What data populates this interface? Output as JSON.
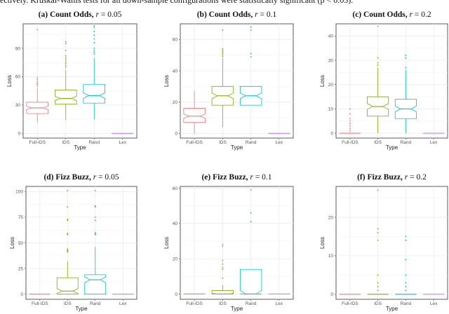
{
  "caption": "ectively. Kruskal-Wallis tests for all down-sample configurations were statistically significant (p < 0.05).",
  "colors": {
    "Full-IDS": "#F8766D",
    "IDS": "#7CAE00",
    "Rand": "#00BFC4",
    "Lex": "#C77CFF"
  },
  "chart_data": [
    {
      "type": "box",
      "title": {
        "label": "(a) Count Odds,",
        "param": "r",
        "value": "= 0.05"
      },
      "xlabel": "Type",
      "ylabel": "Loss",
      "ylim": [
        -5,
        116
      ],
      "yticks": [
        0,
        30,
        60,
        90
      ],
      "categories": [
        "Full-IDS",
        "IDS",
        "Rand",
        "Lex"
      ],
      "boxes": [
        {
          "whisker_lo": 12,
          "q1": 21,
          "median": 27,
          "q3": 33,
          "whisker_hi": 48,
          "outliers": [
            50,
            52,
            53,
            55,
            57,
            59,
            110
          ]
        },
        {
          "whisker_lo": 14,
          "q1": 31,
          "median": 37,
          "q3": 46,
          "whisker_hi": 67,
          "outliers": [
            70,
            72,
            74,
            76,
            78,
            80,
            82,
            88,
            95,
            97
          ]
        },
        {
          "whisker_lo": 15,
          "q1": 32,
          "median": 40,
          "q3": 52,
          "whisker_hi": 80,
          "outliers": [
            84,
            86,
            88,
            90,
            96,
            100,
            104,
            108,
            112,
            114
          ]
        },
        {
          "whisker_lo": 0,
          "q1": 0,
          "median": 0,
          "q3": 0,
          "whisker_hi": 0,
          "outliers": []
        }
      ]
    },
    {
      "type": "box",
      "title": {
        "label": "(b) Count Odds,",
        "param": "r",
        "value": "= 0.1"
      },
      "xlabel": "Type",
      "ylabel": "Loss",
      "ylim": [
        -3,
        70
      ],
      "yticks": [
        0,
        20,
        40,
        60
      ],
      "categories": [
        "Full-IDS",
        "IDS",
        "Rand",
        "Lex"
      ],
      "boxes": [
        {
          "whisker_lo": 0,
          "q1": 7,
          "median": 11,
          "q3": 16,
          "whisker_hi": 27,
          "outliers": []
        },
        {
          "whisker_lo": 4,
          "q1": 18,
          "median": 24,
          "q3": 30,
          "whisker_hi": 48,
          "outliers": [
            49,
            50,
            51,
            52,
            53,
            54,
            66
          ]
        },
        {
          "whisker_lo": 18,
          "q1": 18,
          "median": 24,
          "q3": 30,
          "whisker_hi": 30,
          "outliers": [
            49,
            51,
            66,
            68
          ]
        },
        {
          "whisker_lo": 0,
          "q1": 0,
          "median": 0,
          "q3": 0,
          "whisker_hi": 0,
          "outliers": []
        }
      ]
    },
    {
      "type": "box",
      "title": {
        "label": "(c) Count Odds,",
        "param": "r",
        "value": "= 0.2"
      },
      "xlabel": "Type",
      "ylabel": "Loss",
      "ylim": [
        -2,
        45
      ],
      "yticks": [
        0,
        10,
        20,
        30,
        40
      ],
      "categories": [
        "Full-IDS",
        "IDS",
        "Rand",
        "Lex"
      ],
      "boxes": [
        {
          "whisker_lo": 0,
          "q1": 0,
          "median": 0,
          "q3": 0,
          "whisker_hi": 0,
          "outliers": [
            1,
            2,
            3,
            4,
            5,
            6,
            8,
            10
          ]
        },
        {
          "whisker_lo": 0,
          "q1": 7,
          "median": 11,
          "q3": 15,
          "whisker_hi": 27,
          "outliers": [
            28,
            29,
            31,
            44
          ]
        },
        {
          "whisker_lo": 0,
          "q1": 6,
          "median": 10,
          "q3": 14,
          "whisker_hi": 26,
          "outliers": [
            27,
            31,
            32
          ]
        },
        {
          "whisker_lo": 0,
          "q1": 0,
          "median": 0,
          "q3": 0,
          "whisker_hi": 0,
          "outliers": []
        }
      ]
    },
    {
      "type": "box",
      "title": {
        "label": "(d) Fizz Buzz,",
        "param": "r",
        "value": "= 0.05"
      },
      "xlabel": "Type",
      "ylabel": "Loss",
      "ylim": [
        -5,
        105
      ],
      "yticks": [
        0,
        25,
        50,
        75,
        100
      ],
      "categories": [
        "Full-IDS",
        "IDS",
        "Rand",
        "Lex"
      ],
      "boxes": [
        {
          "whisker_lo": 0,
          "q1": 0,
          "median": 0,
          "q3": 0,
          "whisker_hi": 0,
          "outliers": []
        },
        {
          "whisker_lo": 0,
          "q1": 0,
          "median": 3,
          "q3": 16,
          "whisker_hi": 32,
          "outliers": [
            41,
            42,
            43,
            44,
            58,
            59,
            72,
            73,
            85,
            101
          ]
        },
        {
          "whisker_lo": 0,
          "q1": 0,
          "median": 14,
          "q3": 19,
          "whisker_hi": 46,
          "outliers": [
            58,
            59,
            60,
            72,
            75,
            85,
            86,
            101
          ]
        },
        {
          "whisker_lo": 0,
          "q1": 0,
          "median": 0,
          "q3": 0,
          "whisker_hi": 0,
          "outliers": []
        }
      ]
    },
    {
      "type": "box",
      "title": {
        "label": "(e) Fizz Buzz,",
        "param": "r",
        "value": "= 0.1"
      },
      "xlabel": "Type",
      "ylabel": "Loss",
      "ylim": [
        -3,
        61
      ],
      "yticks": [
        0,
        20,
        40,
        60
      ],
      "categories": [
        "Full-IDS",
        "IDS",
        "Rand",
        "Lex"
      ],
      "boxes": [
        {
          "whisker_lo": 0,
          "q1": 0,
          "median": 0,
          "q3": 0,
          "whisker_hi": 0,
          "outliers": []
        },
        {
          "whisker_lo": 0,
          "q1": 0,
          "median": 0,
          "q3": 2,
          "whisker_hi": 5,
          "outliers": [
            9,
            14,
            15,
            17,
            19,
            27,
            28
          ]
        },
        {
          "whisker_lo": 0,
          "q1": 0,
          "median": 0,
          "q3": 14,
          "whisker_hi": 14,
          "outliers": [
            41,
            46,
            59
          ]
        },
        {
          "whisker_lo": 0,
          "q1": 0,
          "median": 0,
          "q3": 0,
          "whisker_hi": 0,
          "outliers": []
        }
      ]
    },
    {
      "type": "box",
      "title": {
        "label": "(f) Fizz Buzz,",
        "param": "r",
        "value": "= 0.2"
      },
      "xlabel": "Type",
      "ylabel": "Loss",
      "ylim": [
        -1.3,
        28
      ],
      "yticks": [
        0,
        10,
        20
      ],
      "categories": [
        "Full-IDS",
        "IDS",
        "Rand",
        "Lex"
      ],
      "boxes": [
        {
          "whisker_lo": 0,
          "q1": 0,
          "median": 0,
          "q3": 0,
          "whisker_hi": 0,
          "outliers": []
        },
        {
          "whisker_lo": 0,
          "q1": 0,
          "median": 0,
          "q3": 0,
          "whisker_hi": 0,
          "outliers": [
            1,
            2,
            3,
            5,
            14,
            16,
            17,
            27
          ]
        },
        {
          "whisker_lo": 0,
          "q1": 0,
          "median": 0,
          "q3": 0,
          "whisker_hi": 0,
          "outliers": [
            1,
            2,
            3,
            5,
            9,
            14,
            15
          ]
        },
        {
          "whisker_lo": 0,
          "q1": 0,
          "median": 0,
          "q3": 0,
          "whisker_hi": 0,
          "outliers": []
        }
      ]
    }
  ]
}
